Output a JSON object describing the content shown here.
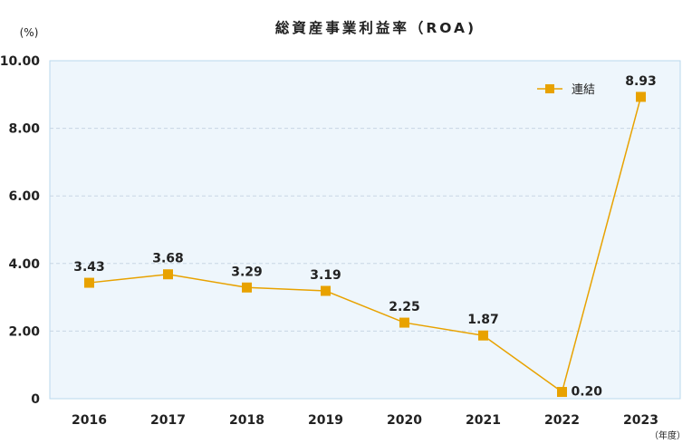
{
  "chart_data": {
    "type": "line",
    "title": "総資産事業利益率（ROA)",
    "ylabel": "(%)",
    "xlabel": "（年度）",
    "categories": [
      "2016",
      "2017",
      "2018",
      "2019",
      "2020",
      "2021",
      "2022",
      "2023"
    ],
    "series": [
      {
        "name": "連結",
        "values": [
          3.43,
          3.68,
          3.29,
          3.19,
          2.25,
          1.87,
          0.2,
          8.93
        ],
        "labels": [
          "3.43",
          "3.68",
          "3.29",
          "3.19",
          "2.25",
          "1.87",
          "0.20",
          "8.93"
        ]
      }
    ],
    "ylim": [
      0,
      10
    ],
    "yticks": [
      0,
      2,
      4,
      6,
      8,
      10
    ],
    "ytick_labels": [
      "0",
      "2.00",
      "4.00",
      "6.00",
      "8.00",
      "10.00"
    ],
    "grid": true,
    "legend": "top-right",
    "colors": {
      "line": "#e8a200",
      "plot_bg": "#eef6fc",
      "plot_border": "#b9d8ee",
      "grid": "#c8d6e4"
    }
  }
}
